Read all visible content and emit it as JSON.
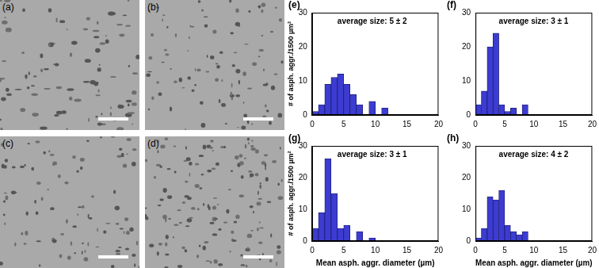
{
  "images": [
    {
      "label": "(a)"
    },
    {
      "label": "(b)"
    },
    {
      "label": "(c)"
    },
    {
      "label": "(d)"
    }
  ],
  "chart_data": [
    {
      "type": "histogram",
      "title": "(e)",
      "annotations": [
        "average size: 5 ± 2"
      ],
      "ylabel": "# of asph. aggr./1500 µm²",
      "bins": [
        0,
        1,
        2,
        3,
        4,
        5,
        6,
        7,
        8,
        9,
        10,
        11,
        12,
        13,
        14,
        15,
        16,
        17,
        18,
        19,
        20
      ],
      "values": [
        1,
        3,
        9,
        11,
        12,
        9,
        6,
        3,
        0,
        4,
        0,
        2,
        0,
        0,
        0,
        0,
        0,
        0,
        0,
        0
      ],
      "color": "#3c3cd2",
      "xlim": [
        0,
        20
      ],
      "xticks": [
        0,
        5,
        10,
        15,
        20
      ],
      "ylim": [
        0,
        30
      ],
      "yticks": [
        0,
        10,
        20,
        30
      ],
      "grid": false
    },
    {
      "type": "histogram",
      "title": "(f)",
      "annotations": [
        "average size: 3 ± 1"
      ],
      "bins": [
        0,
        1,
        2,
        3,
        4,
        5,
        6,
        7,
        8,
        9,
        10,
        11,
        12,
        13,
        14,
        15,
        16,
        17,
        18,
        19,
        20
      ],
      "values": [
        3,
        7,
        20,
        24,
        3,
        1,
        2,
        0,
        3,
        0,
        0,
        0,
        0,
        0,
        0,
        0,
        0,
        0,
        0,
        0
      ],
      "color": "#3c3cd2",
      "xlim": [
        0,
        20
      ],
      "xticks": [
        0,
        5,
        10,
        15,
        20
      ],
      "ylim": [
        0,
        30
      ],
      "yticks": [
        0,
        10,
        20,
        30
      ],
      "grid": false
    },
    {
      "type": "histogram",
      "title": "(g)",
      "annotations": [
        "average size: 3 ± 1"
      ],
      "ylabel": "# of asph. aggr./1500 µm²",
      "xlabel": "Mean asph. aggr. diameter (µm)",
      "bins": [
        0,
        1,
        2,
        3,
        4,
        5,
        6,
        7,
        8,
        9,
        10,
        11,
        12,
        13,
        14,
        15,
        16,
        17,
        18,
        19,
        20
      ],
      "values": [
        4,
        9,
        26,
        15,
        4,
        5,
        0,
        3,
        0,
        1,
        0,
        0,
        0,
        0,
        0,
        0,
        0,
        0,
        0,
        0
      ],
      "color": "#3c3cd2",
      "xlim": [
        0,
        20
      ],
      "xticks": [
        0,
        5,
        10,
        15,
        20
      ],
      "ylim": [
        0,
        30
      ],
      "yticks": [
        0,
        10,
        20,
        30
      ],
      "grid": false
    },
    {
      "type": "histogram",
      "title": "(h)",
      "annotations": [
        "average size: 4 ± 2"
      ],
      "xlabel": "Mean asph. aggr. diameter (µm)",
      "bins": [
        0,
        1,
        2,
        3,
        4,
        5,
        6,
        7,
        8,
        9,
        10,
        11,
        12,
        13,
        14,
        15,
        16,
        17,
        18,
        19,
        20
      ],
      "values": [
        1,
        4,
        14,
        13,
        16,
        5,
        3,
        2,
        3,
        0,
        0,
        0,
        0,
        0,
        0,
        0,
        0,
        0,
        0,
        0
      ],
      "color": "#3c3cd2",
      "xlim": [
        0,
        20
      ],
      "xticks": [
        0,
        5,
        10,
        15,
        20
      ],
      "ylim": [
        0,
        30
      ],
      "yticks": [
        0,
        10,
        20,
        30
      ],
      "grid": false
    }
  ]
}
